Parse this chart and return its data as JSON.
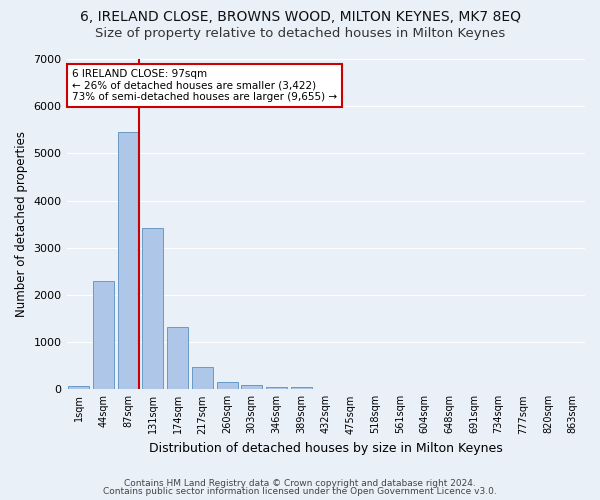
{
  "title_line1": "6, IRELAND CLOSE, BROWNS WOOD, MILTON KEYNES, MK7 8EQ",
  "title_line2": "Size of property relative to detached houses in Milton Keynes",
  "xlabel": "Distribution of detached houses by size in Milton Keynes",
  "ylabel": "Number of detached properties",
  "footer_line1": "Contains HM Land Registry data © Crown copyright and database right 2024.",
  "footer_line2": "Contains public sector information licensed under the Open Government Licence v3.0.",
  "bar_labels": [
    "1sqm",
    "44sqm",
    "87sqm",
    "131sqm",
    "174sqm",
    "217sqm",
    "260sqm",
    "303sqm",
    "346sqm",
    "389sqm",
    "432sqm",
    "475sqm",
    "518sqm",
    "561sqm",
    "604sqm",
    "648sqm",
    "691sqm",
    "734sqm",
    "777sqm",
    "820sqm",
    "863sqm"
  ],
  "bar_values": [
    80,
    2300,
    5450,
    3420,
    1320,
    470,
    150,
    90,
    55,
    40,
    0,
    0,
    0,
    0,
    0,
    0,
    0,
    0,
    0,
    0,
    0
  ],
  "bar_color": "#aec6e8",
  "bar_edge_color": "#5a8fc0",
  "vline_color": "#cc0000",
  "ylim": [
    0,
    7000
  ],
  "yticks": [
    0,
    1000,
    2000,
    3000,
    4000,
    5000,
    6000,
    7000
  ],
  "annotation_title": "6 IRELAND CLOSE: 97sqm",
  "annotation_line1": "← 26% of detached houses are smaller (3,422)",
  "annotation_line2": "73% of semi-detached houses are larger (9,655) →",
  "annotation_box_color": "#ffffff",
  "annotation_box_edge": "#cc0000",
  "bg_color": "#eaf0f8",
  "grid_color": "#ffffff",
  "title1_fontsize": 10,
  "title2_fontsize": 9.5,
  "xlabel_fontsize": 9,
  "ylabel_fontsize": 8.5,
  "footer_fontsize": 6.5
}
